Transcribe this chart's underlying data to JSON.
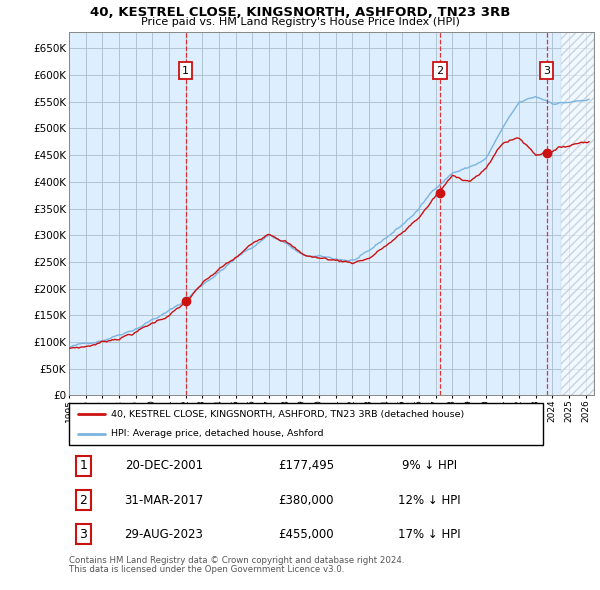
{
  "title": "40, KESTREL CLOSE, KINGSNORTH, ASHFORD, TN23 3RB",
  "subtitle": "Price paid vs. HM Land Registry's House Price Index (HPI)",
  "hpi_color": "#7ab4e0",
  "price_color": "#cc1111",
  "vline_color": "#dd2222",
  "chart_bg_color": "#ddeeff",
  "background_color": "#ffffff",
  "grid_color": "#aabbcc",
  "ylim": [
    0,
    680000
  ],
  "yticks": [
    0,
    50000,
    100000,
    150000,
    200000,
    250000,
    300000,
    350000,
    400000,
    450000,
    500000,
    550000,
    600000,
    650000
  ],
  "ytick_labels": [
    "£0",
    "£50K",
    "£100K",
    "£150K",
    "£200K",
    "£250K",
    "£300K",
    "£350K",
    "£400K",
    "£450K",
    "£500K",
    "£550K",
    "£600K",
    "£650K"
  ],
  "xlim_start": 1995.0,
  "xlim_end": 2026.5,
  "transactions": [
    {
      "label": "1",
      "date": "20-DEC-2001",
      "price": 177495,
      "price_str": "£177,495",
      "pct": "9%",
      "x_year": 2002.0
    },
    {
      "label": "2",
      "date": "31-MAR-2017",
      "price": 380000,
      "price_str": "£380,000",
      "pct": "12%",
      "x_year": 2017.25
    },
    {
      "label": "3",
      "date": "29-AUG-2023",
      "price": 455000,
      "price_str": "£455,000",
      "pct": "17%",
      "x_year": 2023.66
    }
  ],
  "legend_line1": "40, KESTREL CLOSE, KINGSNORTH, ASHFORD, TN23 3RB (detached house)",
  "legend_line2": "HPI: Average price, detached house, Ashford",
  "footnote_line1": "Contains HM Land Registry data © Crown copyright and database right 2024.",
  "footnote_line2": "This data is licensed under the Open Government Licence v3.0."
}
